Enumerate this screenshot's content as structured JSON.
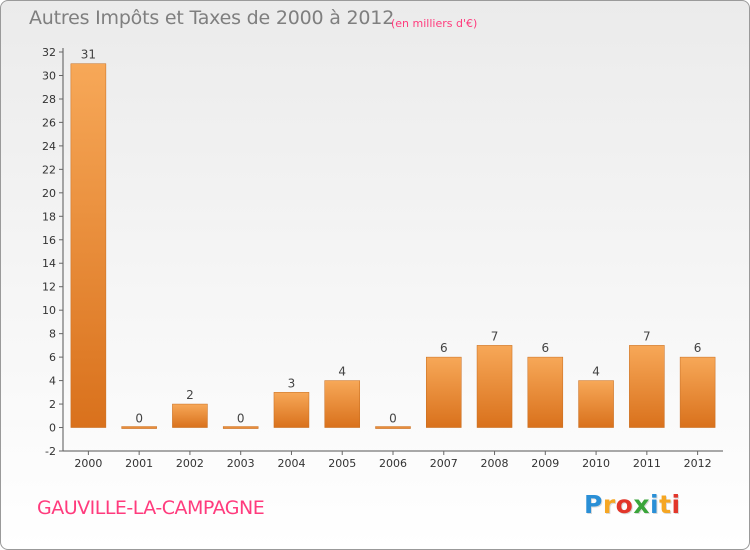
{
  "header": {
    "title": "Autres Impôts et Taxes de 2000 à 2012",
    "unit": "(en milliers d'€)"
  },
  "footer": {
    "commune": "GAUVILLE-LA-CAMPAGNE",
    "logo_letters": [
      "P",
      "r",
      "o",
      "x",
      "i",
      "t",
      "i"
    ],
    "logo_colors": [
      "#2a8fd6",
      "#f5a623",
      "#e2362a",
      "#3aa53a",
      "#2a8fd6",
      "#f5a623",
      "#e2362a"
    ]
  },
  "colors": {
    "bar_light": "#f7a858",
    "bar_dark": "#d9711c",
    "axis": "#555555",
    "grid_tick": "#666666",
    "title_gray": "#7f7f7f",
    "accent_pink": "#ff3b7d"
  },
  "chart_data": {
    "type": "bar",
    "title": "Autres Impôts et Taxes de 2000 à 2012",
    "subtitle": "(en milliers d'€)",
    "categories": [
      "2000",
      "2001",
      "2002",
      "2003",
      "2004",
      "2005",
      "2006",
      "2007",
      "2008",
      "2009",
      "2010",
      "2011",
      "2012"
    ],
    "values": [
      31,
      0,
      2,
      0,
      3,
      4,
      0,
      6,
      7,
      6,
      4,
      7,
      6
    ],
    "data_labels": [
      "31",
      "0",
      "2",
      "0",
      "3",
      "4",
      "0",
      "6",
      "7",
      "6",
      "4",
      "7",
      "6"
    ],
    "yticks": [
      "-2",
      "0",
      "2",
      "4",
      "6",
      "8",
      "10",
      "12",
      "14",
      "16",
      "18",
      "20",
      "22",
      "24",
      "26",
      "28",
      "30",
      "32"
    ],
    "ylim": [
      -2,
      32
    ],
    "xlabel": "",
    "ylabel": "",
    "grid": false,
    "legend": "none"
  }
}
